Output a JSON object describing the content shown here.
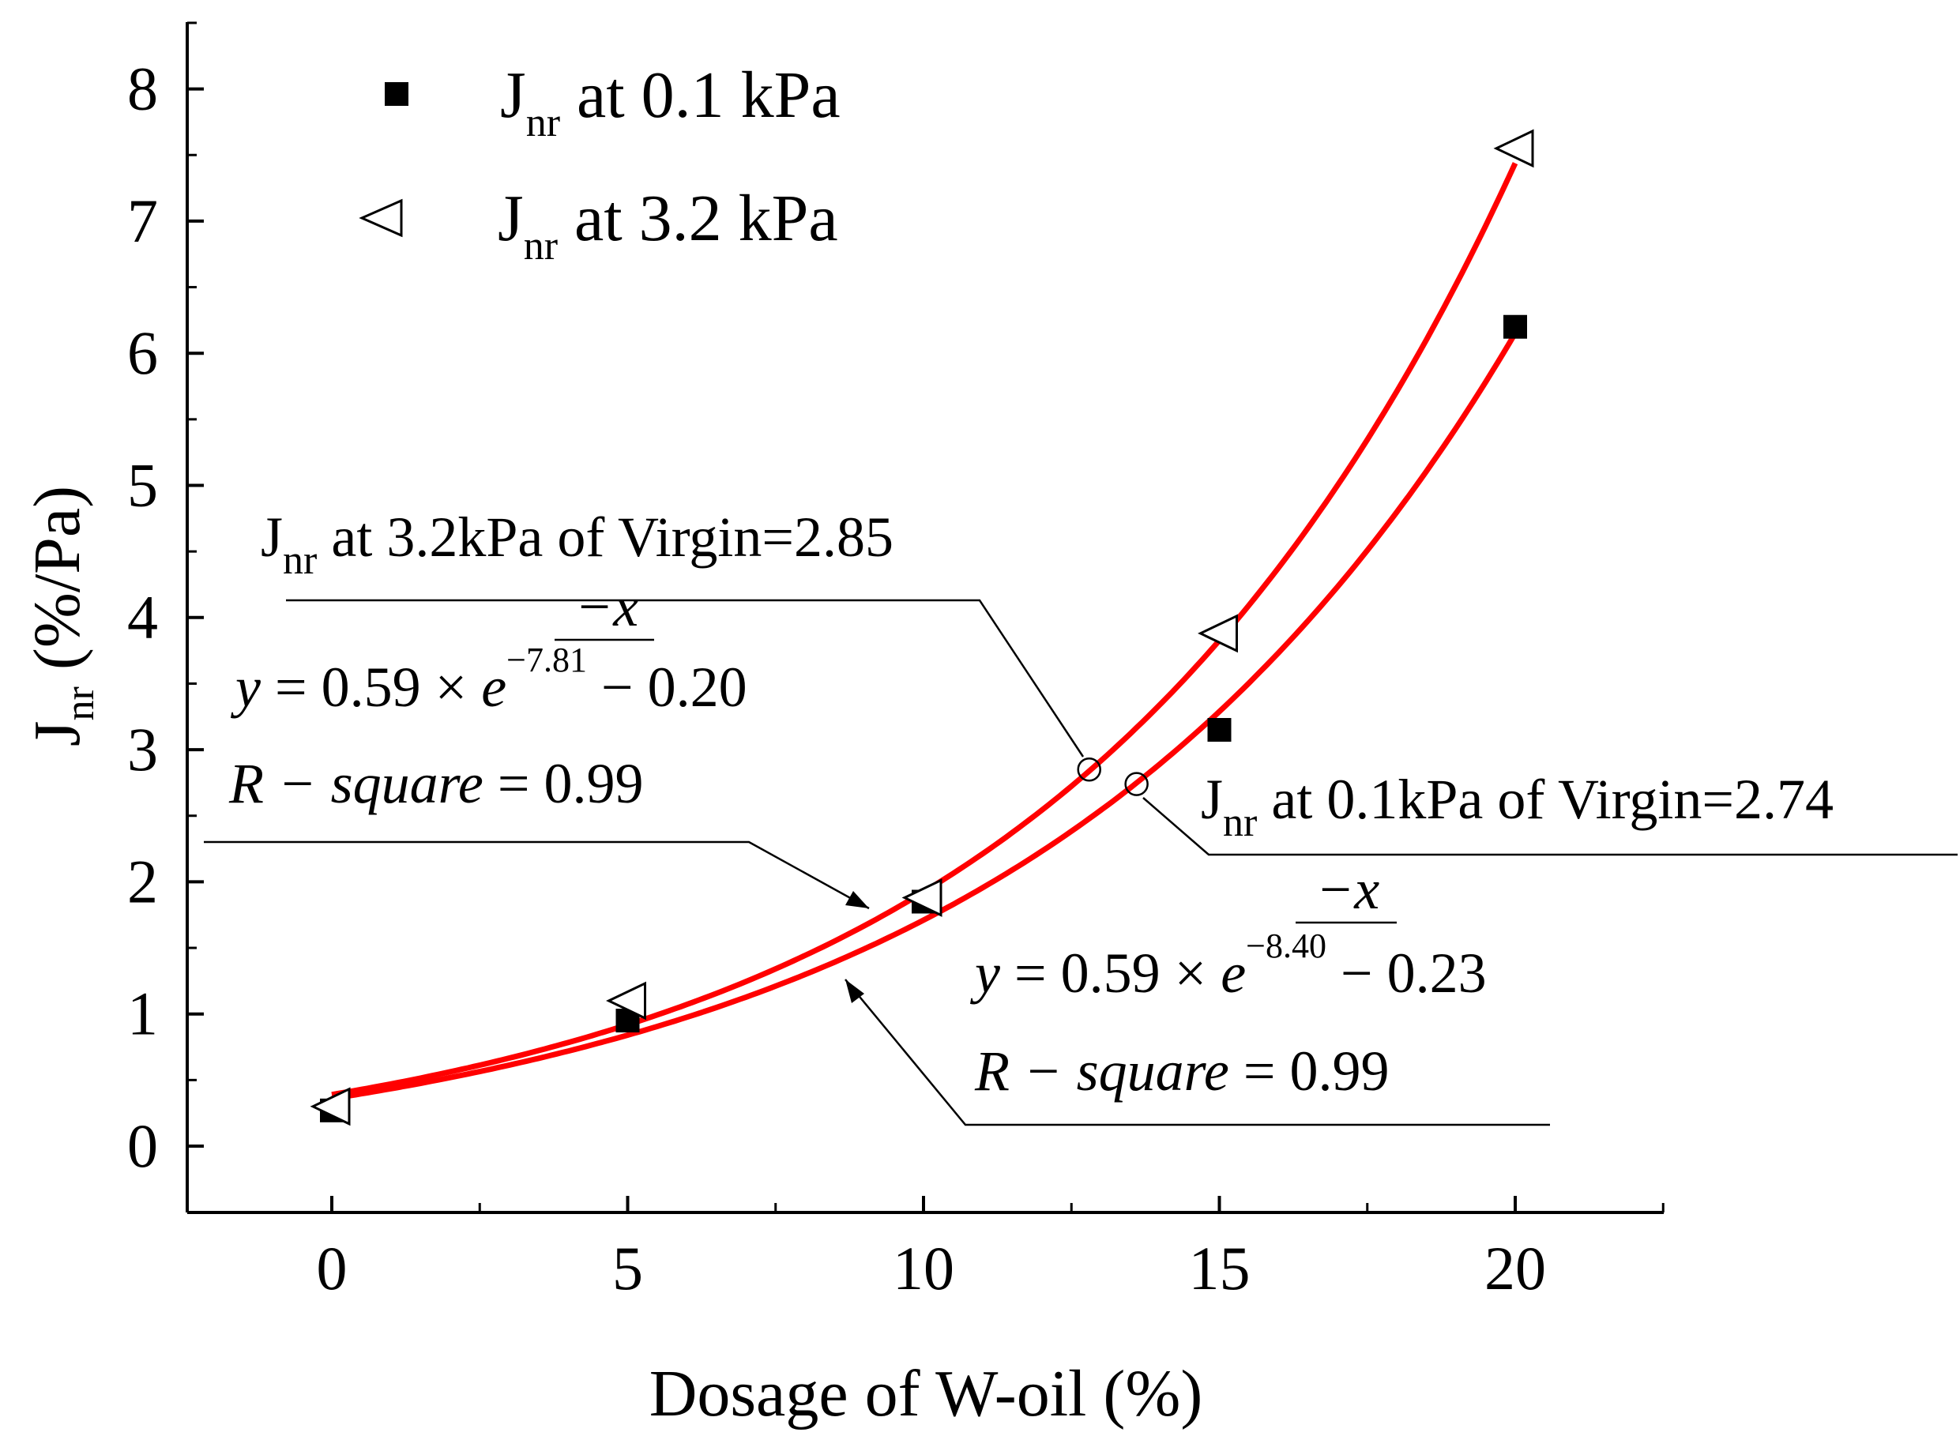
{
  "chart_data": {
    "type": "scatter",
    "title": "",
    "xlabel": "Dosage of W-oil (%)",
    "ylabel": {
      "main": "J",
      "sub": "nr",
      "unit": " (%/Pa)"
    },
    "xlim": [
      -2.5,
      22.5
    ],
    "ylim": [
      -0.5,
      8.5
    ],
    "xticks": [
      0,
      5,
      10,
      15,
      20
    ],
    "yticks": [
      0,
      1,
      2,
      3,
      4,
      5,
      6,
      7,
      8
    ],
    "series": [
      {
        "name": "Jnr at 0.1 kPa",
        "legend": {
          "main": "J",
          "sub": "nr",
          "rest": " at 0.1 kPa"
        },
        "marker": "filled-square",
        "x": [
          0,
          5,
          10,
          15,
          20
        ],
        "y": [
          0.27,
          0.95,
          1.85,
          3.15,
          6.2
        ],
        "fit": {
          "a": 0.59,
          "t": -8.4,
          "c": -0.23
        }
      },
      {
        "name": "Jnr at 3.2 kPa",
        "legend": {
          "main": "J",
          "sub": "nr",
          "rest": " at 3.2 kPa"
        },
        "marker": "open-left-triangle",
        "x": [
          0,
          5,
          10,
          15,
          20
        ],
        "y": [
          0.3,
          1.1,
          1.88,
          3.88,
          7.55
        ],
        "fit": {
          "a": 0.59,
          "t": -7.81,
          "c": -0.2
        }
      }
    ],
    "fit_line_color": "#ff0000",
    "virgin_points": [
      {
        "x": 12.8,
        "y": 2.85,
        "label": {
          "main": "J",
          "sub": "nr",
          "rest": " at 3.2kPa of Virgin=2.85"
        }
      },
      {
        "x": 13.6,
        "y": 2.74,
        "label": {
          "main": "J",
          "sub": "nr",
          "rest": " at 0.1kPa of Virgin=2.74"
        }
      }
    ],
    "equations": [
      {
        "series": "Jnr at 3.2 kPa",
        "y_var": "y",
        "eq_left": " = 0.59 × ",
        "e": "e",
        "numerator": "−x",
        "denominator": "−7.81",
        "eq_right": " − 0.20",
        "r_square_label": "R − square",
        "r_square_value": " = 0.99"
      },
      {
        "series": "Jnr at 0.1 kPa",
        "y_var": "y",
        "eq_left": " = 0.59 × ",
        "e": "e",
        "numerator": "−x",
        "denominator": "−8.40",
        "eq_right": " − 0.23",
        "r_square_label": "R − square",
        "r_square_value": " = 0.99"
      }
    ]
  }
}
